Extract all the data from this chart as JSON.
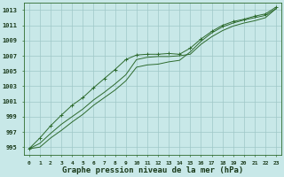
{
  "title": "Graphe pression niveau de la mer (hPa)",
  "x_values": [
    0,
    1,
    2,
    3,
    4,
    5,
    6,
    7,
    8,
    9,
    10,
    11,
    12,
    13,
    14,
    15,
    16,
    17,
    18,
    19,
    20,
    21,
    22,
    23
  ],
  "line_upper": [
    994.8,
    996.2,
    997.8,
    999.2,
    1000.5,
    1001.5,
    1002.8,
    1004.0,
    1005.2,
    1006.5,
    1007.1,
    1007.2,
    1007.2,
    1007.3,
    1007.2,
    1008.0,
    1009.2,
    1010.2,
    1011.0,
    1011.5,
    1011.8,
    1012.2,
    1012.5,
    1013.4
  ],
  "line_mid": [
    994.8,
    995.5,
    996.8,
    998.0,
    999.0,
    1000.0,
    1001.2,
    1002.2,
    1003.3,
    1004.5,
    1006.5,
    1006.8,
    1006.9,
    1006.9,
    1007.0,
    1007.2,
    1008.5,
    1009.5,
    1010.3,
    1010.9,
    1011.3,
    1011.6,
    1012.0,
    1013.2
  ],
  "line_lower": [
    994.8,
    995.0,
    996.2,
    997.2,
    998.3,
    999.3,
    1000.5,
    1001.5,
    1002.5,
    1003.7,
    1005.5,
    1005.8,
    1005.9,
    1006.2,
    1006.4,
    1007.5,
    1008.9,
    1010.0,
    1010.8,
    1011.3,
    1011.7,
    1012.0,
    1012.3,
    1013.2
  ],
  "line_color": "#2d6a2d",
  "bg_color": "#c8e8e8",
  "grid_color": "#9fc8c8",
  "ylim_min": 994,
  "ylim_max": 1014,
  "ytick_start": 995,
  "ytick_step": 2
}
